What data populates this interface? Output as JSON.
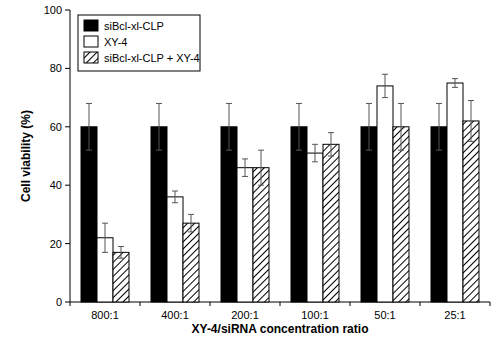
{
  "chart_data": {
    "type": "bar",
    "x_label": "XY-4/siRNA concentration ratio",
    "y_label": "Cell viability (%)",
    "categories": [
      "800:1",
      "400:1",
      "200:1",
      "100:1",
      "50:1",
      "25:1"
    ],
    "series": [
      {
        "name": "siBcl-xl-CLP",
        "color": "#000000",
        "values": [
          60,
          60,
          60,
          60,
          60,
          60
        ],
        "errors": [
          8,
          8,
          8,
          8,
          8,
          8
        ]
      },
      {
        "name": "XY-4",
        "color": "#ffffff",
        "values": [
          22,
          36,
          46,
          51,
          74,
          75
        ],
        "errors": [
          5,
          2,
          3,
          3,
          4,
          1.5
        ]
      },
      {
        "name": "siBcl-xl-CLP + XY-4",
        "color": "#ffffff",
        "values": [
          17,
          27,
          46,
          54,
          60,
          62
        ],
        "errors": [
          2,
          3,
          6,
          4,
          8,
          7
        ]
      }
    ],
    "ylim": [
      0,
      100
    ],
    "yticks": [
      0,
      20,
      40,
      60,
      80,
      100
    ],
    "legend": "top-left",
    "grid": false
  }
}
